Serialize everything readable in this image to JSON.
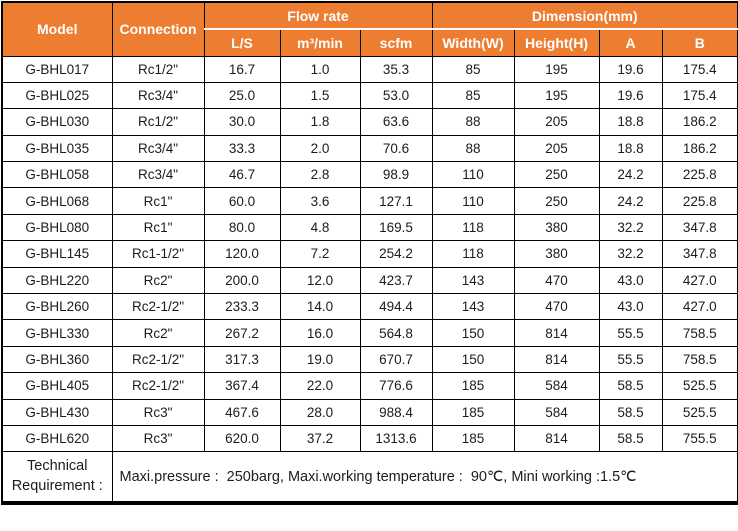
{
  "colors": {
    "header_bg": "#ED7D31",
    "header_text": "#FFFFFF",
    "body_text": "#1C1C1C",
    "border": "#000000"
  },
  "table": {
    "header": {
      "model": "Model",
      "connection": "Connection",
      "flow_rate_group": "Flow rate",
      "dimension_group": "Dimension(mm)",
      "sub_columns": [
        "L/S",
        "m³/min",
        "scfm",
        "Width(W)",
        "Height(H)",
        "A",
        "B"
      ]
    },
    "rows": [
      [
        "G-BHL017",
        "Rc1/2\"",
        "16.7",
        "1.0",
        "35.3",
        "85",
        "195",
        "19.6",
        "175.4"
      ],
      [
        "G-BHL025",
        "Rc3/4\"",
        "25.0",
        "1.5",
        "53.0",
        "85",
        "195",
        "19.6",
        "175.4"
      ],
      [
        "G-BHL030",
        "Rc1/2\"",
        "30.0",
        "1.8",
        "63.6",
        "88",
        "205",
        "18.8",
        "186.2"
      ],
      [
        "G-BHL035",
        "Rc3/4\"",
        "33.3",
        "2.0",
        "70.6",
        "88",
        "205",
        "18.8",
        "186.2"
      ],
      [
        "G-BHL058",
        "Rc3/4\"",
        "46.7",
        "2.8",
        "98.9",
        "110",
        "250",
        "24.2",
        "225.8"
      ],
      [
        "G-BHL068",
        "Rc1\"",
        "60.0",
        "3.6",
        "127.1",
        "110",
        "250",
        "24.2",
        "225.8"
      ],
      [
        "G-BHL080",
        "Rc1\"",
        "80.0",
        "4.8",
        "169.5",
        "118",
        "380",
        "32.2",
        "347.8"
      ],
      [
        "G-BHL145",
        "Rc1-1/2\"",
        "120.0",
        "7.2",
        "254.2",
        "118",
        "380",
        "32.2",
        "347.8"
      ],
      [
        "G-BHL220",
        "Rc2\"",
        "200.0",
        "12.0",
        "423.7",
        "143",
        "470",
        "43.0",
        "427.0"
      ],
      [
        "G-BHL260",
        "Rc2-1/2\"",
        "233.3",
        "14.0",
        "494.4",
        "143",
        "470",
        "43.0",
        "427.0"
      ],
      [
        "G-BHL330",
        "Rc2\"",
        "267.2",
        "16.0",
        "564.8",
        "150",
        "814",
        "55.5",
        "758.5"
      ],
      [
        "G-BHL360",
        "Rc2-1/2\"",
        "317.3",
        "19.0",
        "670.7",
        "150",
        "814",
        "55.5",
        "758.5"
      ],
      [
        "G-BHL405",
        "Rc2-1/2\"",
        "367.4",
        "22.0",
        "776.6",
        "185",
        "584",
        "58.5",
        "525.5"
      ],
      [
        "G-BHL430",
        "Rc3\"",
        "467.6",
        "28.0",
        "988.4",
        "185",
        "584",
        "58.5",
        "525.5"
      ],
      [
        "G-BHL620",
        "Rc3\"",
        "620.0",
        "37.2",
        "1313.6",
        "185",
        "814",
        "58.5",
        "755.5"
      ]
    ],
    "footer": {
      "label": "Technical Requirement :",
      "text": "Maxi.pressure :  250barg, Maxi.working temperature :  90℃, Mini working :1.5℃"
    }
  }
}
